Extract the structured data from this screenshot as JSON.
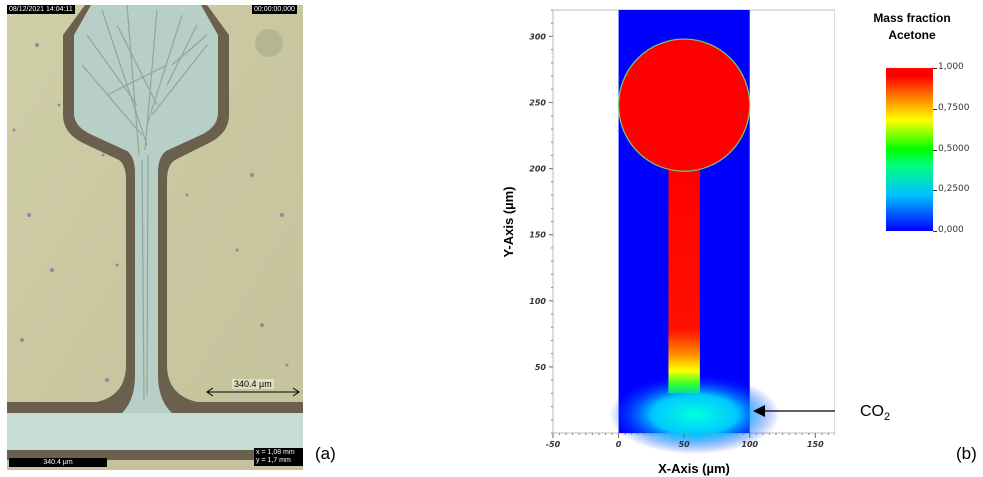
{
  "panel_a": {
    "timestamp": "08/12/2021 14:04:11",
    "elapsed": "00:00:00.000",
    "measure_label": "340.4 µm",
    "scale_bar_label": "340.4 µm",
    "coord_x": "x = 1,08 mm",
    "coord_y": "y = 1,7 mm",
    "panel_letter": "(a)"
  },
  "panel_b": {
    "panel_letter": "(b)",
    "colorbar_title_line1": "Mass fraction",
    "colorbar_title_line2": "Acetone",
    "colorbar_ticks": [
      "1,000",
      "0,7500",
      "0,5000",
      "0,2500",
      "0,000"
    ],
    "co2_label_main": "CO",
    "co2_label_sub": "2"
  },
  "chart_data": {
    "type": "heatmap",
    "title": "",
    "xlabel": "X-Axis (µm)",
    "ylabel": "Y-Axis (µm)",
    "xlim": [
      -50,
      165
    ],
    "ylim": [
      0,
      320
    ],
    "xticks": [
      -50,
      0,
      50,
      100,
      150
    ],
    "yticks": [
      50,
      100,
      150,
      200,
      250,
      300
    ],
    "colorbar": {
      "label": "Mass fraction Acetone",
      "range": [
        0,
        1
      ],
      "ticks": [
        1.0,
        0.75,
        0.5,
        0.25,
        0.0
      ]
    },
    "domain": {
      "x": [
        0,
        100
      ],
      "y": [
        0,
        320
      ]
    },
    "regions": [
      {
        "name": "reservoir",
        "shape": "circle",
        "center": [
          50,
          248
        ],
        "radius": 50,
        "value": 1.0
      },
      {
        "name": "neck",
        "shape": "rect",
        "x": [
          38,
          62
        ],
        "y": [
          30,
          203
        ],
        "value": 1.0
      },
      {
        "name": "main channel",
        "shape": "rect",
        "x": [
          0,
          100
        ],
        "y": [
          0,
          30
        ],
        "value": 0.0
      }
    ],
    "annotations": [
      {
        "text": "CO2",
        "points_to": [
          100,
          20
        ]
      }
    ]
  }
}
